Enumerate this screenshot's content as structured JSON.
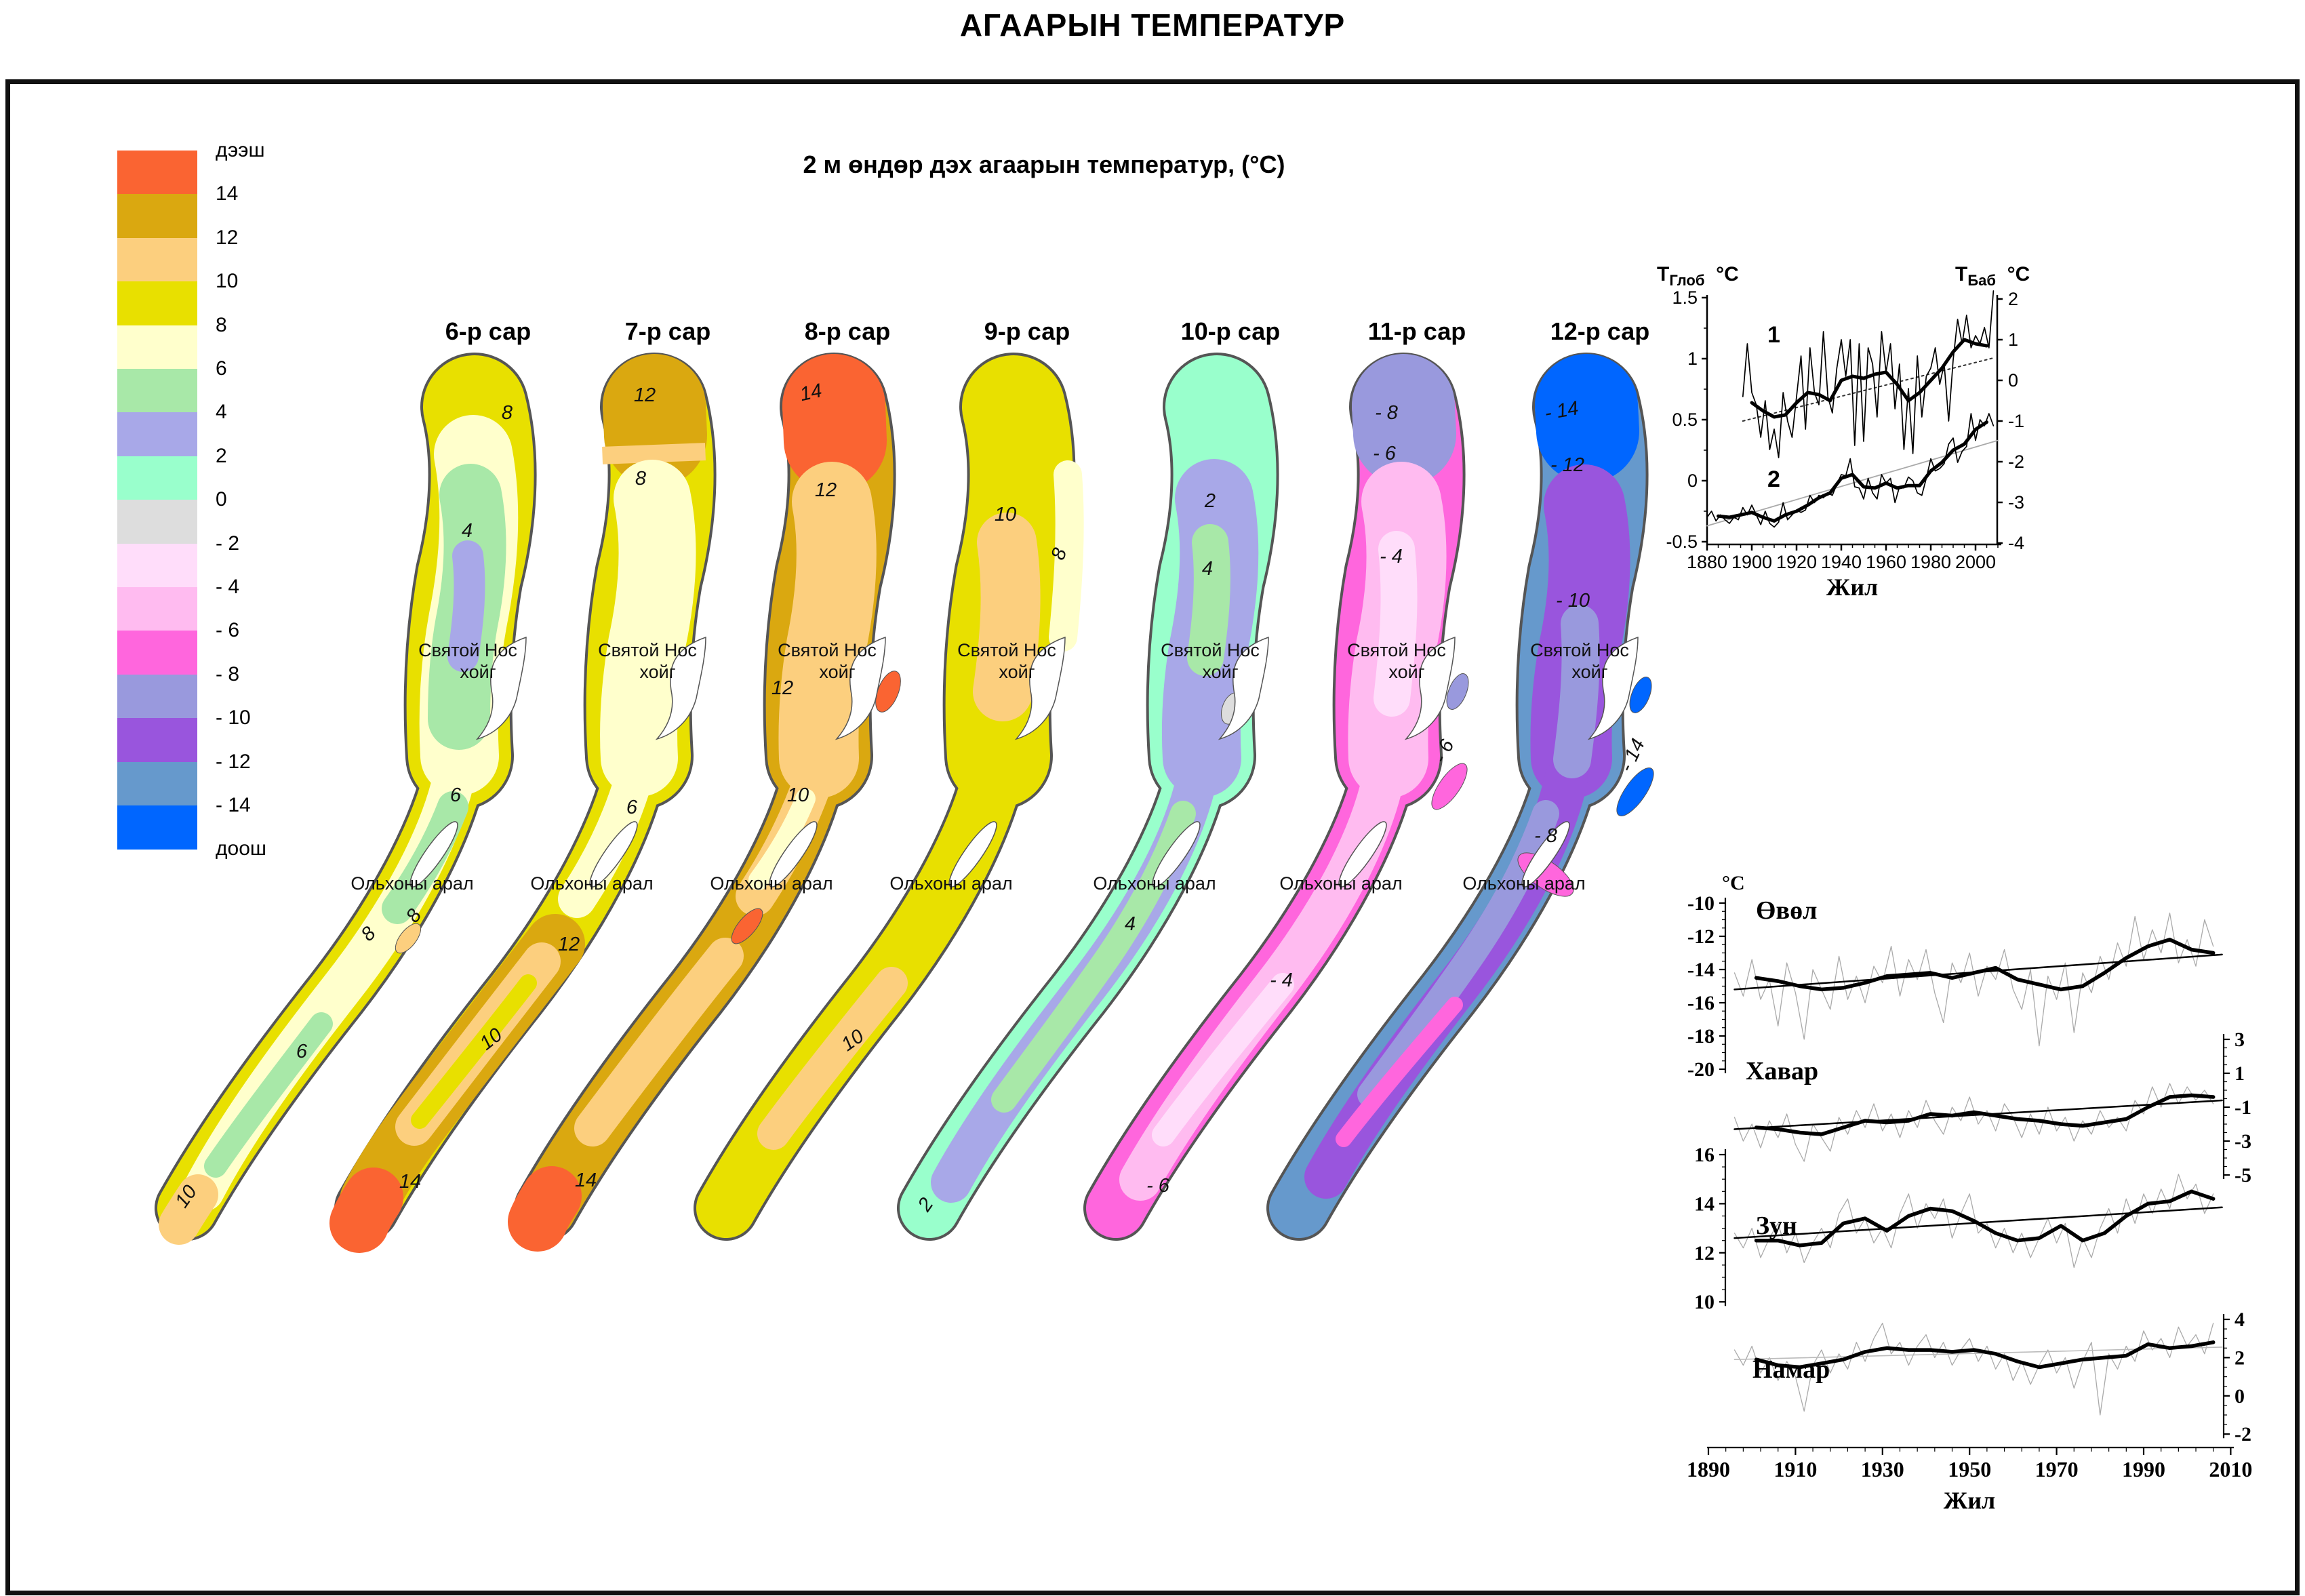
{
  "title": "АГААРЫН ТЕМПЕРАТУР",
  "subtitle": "2 м өндөр дэх агаарын температур,  (°С)",
  "legend": {
    "above": "дээш",
    "below": "доош",
    "boundary_labels": [
      "дээш",
      "14",
      "12",
      "10",
      "8",
      "6",
      "4",
      "2",
      "0",
      "- 2",
      "- 4",
      "- 6",
      "- 8",
      "- 10",
      "- 12",
      "- 14",
      "доош"
    ],
    "colors": [
      "#FA6432",
      "#DAA810",
      "#FCCF7E",
      "#E8E000",
      "#FFFFCC",
      "#A8E8A8",
      "#A8A8E8",
      "#99FFCC",
      "#DDDDDD",
      "#FFDDFA",
      "#FFBBF0",
      "#FF66DD",
      "#9999DD",
      "#9955DD",
      "#6699CC",
      "#0066FF"
    ]
  },
  "zone_colors": {
    "14+": "#FA6432",
    "12-14": "#DAA810",
    "10-12": "#FCCF7E",
    "8-10": "#E8E000",
    "6-8": "#FFFFCC",
    "4-6": "#A8E8A8",
    "2-4": "#A8A8E8",
    "0-2": "#99FFCC",
    "-2-0": "#DDDDDD",
    "-4--2": "#FFDDFA",
    "-6--4": "#FFBBF0",
    "-8--6": "#FF66DD",
    "-10--8": "#9999DD",
    "-12--10": "#9955DD",
    "-14--12": "#6699CC",
    "-14-": "#0066FF",
    "outline": "#555555"
  },
  "maps": [
    {
      "id": "6",
      "title": "6-р сар",
      "peninsula": "Святой Нос хойг",
      "island": "Ольхоны арал",
      "contours": [
        "8",
        "4",
        "6",
        "8",
        "8",
        "6",
        "10"
      ],
      "zones": [
        "8-10",
        "6-8",
        "4-6",
        "2-4",
        "10-12"
      ]
    },
    {
      "id": "7",
      "title": "7-р сар",
      "peninsula": "Святой Нос хойг",
      "island": "Ольхоны арал",
      "contours": [
        "12",
        "8",
        "6",
        "12",
        "10",
        "14"
      ],
      "zones": [
        "8-10",
        "12-14",
        "10-12",
        "6-8",
        "14+"
      ]
    },
    {
      "id": "8",
      "title": "8-р сар",
      "peninsula": "Святой Нос хойг",
      "island": "Ольхоны арал",
      "contours": [
        "14",
        "12",
        "12",
        "10",
        "14"
      ],
      "zones": [
        "12-14",
        "14+",
        "10-12",
        "6-8"
      ]
    },
    {
      "id": "9",
      "title": "9-р сар",
      "peninsula": "Святой Нос хойг",
      "island": "Ольхоны арал",
      "contours": [
        "8",
        "10",
        "10"
      ],
      "zones": [
        "8-10",
        "6-8",
        "10-12"
      ]
    },
    {
      "id": "10",
      "title": "10-р сар",
      "peninsula": "Святой Нос хойг",
      "island": "Ольхоны арал",
      "contours": [
        "2",
        "4",
        "4",
        "2"
      ],
      "zones": [
        "0-2",
        "2-4",
        "4-6",
        "-2-0"
      ]
    },
    {
      "id": "11",
      "title": "11-р сар",
      "peninsula": "Святой Нос хойг",
      "island": "Ольхоны арал",
      "contours": [
        "- 8",
        "- 6",
        "- 4",
        "- 6",
        "- 4",
        "- 6"
      ],
      "zones": [
        "-8--6",
        "-10--8",
        "-6--4",
        "-4--2"
      ]
    },
    {
      "id": "12",
      "title": "12-р сар",
      "peninsula": "Святой Нос хойг",
      "island": "Ольхоны арал",
      "contours": [
        "- 14",
        "- 12",
        "- 10",
        "- 14",
        "- 8"
      ],
      "zones": [
        "-14--12",
        "-14-",
        "-12--10",
        "-10--8",
        "-8--6"
      ]
    }
  ],
  "chart_data": [
    {
      "type": "line",
      "title": "",
      "xlabel": "Жил",
      "x_range": [
        1880,
        2010
      ],
      "x_ticks": [
        1880,
        1900,
        1920,
        1940,
        1960,
        1980,
        2000
      ],
      "left_axis": {
        "label_main": "Т",
        "label_sub": "Глоб",
        "unit": "°С",
        "ticks": [
          1.5,
          1,
          0.5,
          0,
          -0.5
        ]
      },
      "right_axis": {
        "label_main": "Т",
        "label_sub": "Баб",
        "unit": "°С",
        "ticks": [
          2,
          1,
          0,
          -1,
          -2,
          -3,
          -4
        ]
      },
      "series": [
        {
          "name": "1",
          "axis": "right",
          "annual": {
            "start": 1896,
            "step": 2,
            "values": [
              -0.4,
              0.9,
              -0.3,
              -0.6,
              -1.4,
              -0.5,
              -1.7,
              -1.2,
              -1.9,
              -0.3,
              -1.0,
              -1.4,
              -0.4,
              0.6,
              -1.2,
              0.8,
              -0.3,
              -0.6,
              1.2,
              -0.4,
              -0.8,
              0.3,
              1.0,
              0.1,
              1.0,
              -1.6,
              0.9,
              -1.5,
              0.8,
              0.4,
              -0.9,
              1.2,
              0.2,
              0.9,
              -0.7,
              0.4,
              -1.7,
              -0.2,
              -1.8,
              0.6,
              -0.9,
              0.1,
              0.3,
              0.8,
              -0.1,
              0.4,
              -1.0,
              0.5,
              1.5,
              0.9,
              1.6,
              0.8,
              1.1,
              0.9,
              1.3,
              0.8,
              2.2
            ]
          },
          "smoothed": {
            "start": 1900,
            "step": 5,
            "values": [
              -0.55,
              -0.75,
              -0.9,
              -0.85,
              -0.55,
              -0.3,
              -0.35,
              -0.5,
              0.0,
              0.1,
              0.05,
              0.15,
              0.2,
              -0.1,
              -0.5,
              -0.3,
              0.0,
              0.3,
              0.7,
              1.0,
              0.9,
              0.85
            ]
          },
          "trend": {
            "years": [
              1896,
              2008
            ],
            "values": [
              -1.0,
              0.55
            ],
            "style": "dotted"
          }
        },
        {
          "name": "2",
          "axis": "left",
          "annual": {
            "start": 1880,
            "step": 2,
            "values": [
              -0.3,
              -0.25,
              -0.33,
              -0.28,
              -0.32,
              -0.35,
              -0.3,
              -0.32,
              -0.22,
              -0.28,
              -0.2,
              -0.28,
              -0.36,
              -0.25,
              -0.35,
              -0.38,
              -0.34,
              -0.18,
              -0.32,
              -0.28,
              -0.24,
              -0.26,
              -0.24,
              -0.12,
              -0.18,
              -0.12,
              -0.14,
              -0.1,
              -0.12,
              -0.03,
              0.05,
              0.04,
              0.18,
              -0.05,
              -0.06,
              -0.15,
              0.02,
              -0.1,
              -0.15,
              0.05,
              -0.02,
              0.02,
              -0.18,
              -0.05,
              -0.06,
              0.03,
              0.0,
              -0.1,
              -0.12,
              0.02,
              0.18,
              0.08,
              0.1,
              0.14,
              0.3,
              0.35,
              0.15,
              0.24,
              0.28,
              0.55,
              0.33,
              0.5,
              0.45,
              0.55,
              0.45
            ]
          },
          "smoothed": {
            "start": 1885,
            "step": 5,
            "values": [
              -0.29,
              -0.3,
              -0.28,
              -0.26,
              -0.3,
              -0.33,
              -0.28,
              -0.25,
              -0.2,
              -0.14,
              -0.1,
              0.02,
              0.05,
              -0.05,
              -0.06,
              -0.02,
              -0.06,
              -0.04,
              -0.04,
              0.08,
              0.15,
              0.25,
              0.3,
              0.42,
              0.48
            ]
          },
          "trend": {
            "years": [
              1880,
              2010
            ],
            "values": [
              -0.37,
              0.33
            ],
            "style": "gray"
          }
        }
      ]
    },
    {
      "type": "line",
      "xlabel": "Жил",
      "x_range": [
        1890,
        2010
      ],
      "x_ticks": [
        1890,
        1910,
        1930,
        1950,
        1970,
        1990,
        2010
      ],
      "panels": [
        {
          "name": "Өвөл",
          "unit": "°С",
          "axis_side": "left",
          "ticks": [
            -10,
            -12,
            -14,
            -16,
            -18,
            -20
          ],
          "annual": {
            "start": 1896,
            "step": 2,
            "values": [
              -14.2,
              -15.6,
              -13.4,
              -15.8,
              -14.6,
              -17.4,
              -13.6,
              -15.4,
              -18.2,
              -14.0,
              -15.2,
              -16.4,
              -13.2,
              -15.8,
              -14.4,
              -16.0,
              -13.8,
              -14.8,
              -12.6,
              -15.6,
              -13.4,
              -14.6,
              -12.8,
              -15.4,
              -17.2,
              -13.6,
              -14.8,
              -13.0,
              -15.6,
              -13.8,
              -14.6,
              -12.8,
              -15.2,
              -16.4,
              -14.0,
              -18.6,
              -14.4,
              -15.8,
              -13.6,
              -17.8,
              -14.2,
              -15.4,
              -13.2,
              -14.6,
              -12.4,
              -13.8,
              -10.8,
              -13.4,
              -11.6,
              -13.0,
              -10.6,
              -13.6,
              -12.2,
              -13.8,
              -11.0,
              -12.6
            ]
          },
          "smoothed": {
            "start": 1901,
            "step": 5,
            "values": [
              -14.5,
              -14.7,
              -15.0,
              -15.2,
              -15.1,
              -14.8,
              -14.4,
              -14.3,
              -14.2,
              -14.5,
              -14.2,
              -13.9,
              -14.6,
              -14.9,
              -15.2,
              -15.0,
              -14.2,
              -13.3,
              -12.6,
              -12.2,
              -12.8,
              -13.0
            ]
          },
          "trend": {
            "years": [
              1896,
              2008
            ],
            "values": [
              -15.2,
              -13.1
            ]
          }
        },
        {
          "name": "Хавар",
          "unit": "°С",
          "axis_side": "right",
          "ticks": [
            3,
            1,
            -1,
            -3,
            -5
          ],
          "annual": {
            "start": 1896,
            "step": 2,
            "values": [
              -1.6,
              -3.0,
              -2.0,
              -3.4,
              -1.8,
              -2.8,
              -1.4,
              -3.2,
              -4.2,
              -2.0,
              -2.8,
              -3.6,
              -1.6,
              -2.6,
              -1.2,
              -2.2,
              -0.8,
              -2.4,
              -1.4,
              -2.8,
              -1.2,
              -2.2,
              -0.6,
              -1.8,
              -2.6,
              -1.0,
              -1.8,
              -0.4,
              -2.0,
              -1.2,
              -2.4,
              -0.8,
              -1.6,
              -2.8,
              -1.4,
              -2.6,
              -1.0,
              -2.4,
              -1.6,
              -3.0,
              -1.8,
              -2.6,
              -1.2,
              -2.2,
              -1.6,
              -2.4,
              -0.6,
              -1.4,
              0.2,
              -1.0,
              0.4,
              -0.8,
              0.2,
              -0.6,
              0.0,
              -0.8
            ]
          },
          "smoothed": {
            "start": 1901,
            "step": 5,
            "values": [
              -2.2,
              -2.3,
              -2.5,
              -2.6,
              -2.2,
              -1.8,
              -1.9,
              -1.8,
              -1.4,
              -1.5,
              -1.3,
              -1.5,
              -1.7,
              -1.8,
              -2.0,
              -2.1,
              -1.9,
              -1.7,
              -1.0,
              -0.4,
              -0.3,
              -0.4
            ]
          },
          "trend": {
            "years": [
              1896,
              2008
            ],
            "values": [
              -2.3,
              -0.6
            ]
          }
        },
        {
          "name": "Зун",
          "unit": "°С",
          "axis_side": "left",
          "ticks": [
            16,
            14,
            12,
            10
          ],
          "annual": {
            "start": 1896,
            "step": 2,
            "values": [
              12.8,
              12.2,
              13.0,
              11.8,
              12.6,
              13.2,
              12.0,
              12.8,
              11.6,
              12.4,
              13.0,
              12.2,
              13.6,
              14.2,
              12.8,
              13.4,
              12.4,
              13.0,
              12.2,
              13.6,
              14.4,
              13.0,
              14.0,
              13.4,
              14.2,
              12.6,
              13.6,
              14.4,
              12.8,
              13.2,
              12.2,
              13.0,
              12.0,
              12.8,
              11.8,
              12.6,
              13.4,
              12.4,
              13.2,
              11.4,
              12.6,
              11.8,
              13.0,
              13.8,
              12.8,
              14.2,
              13.2,
              14.4,
              13.6,
              14.6,
              13.8,
              15.2,
              14.2,
              14.8,
              13.6,
              14.4
            ]
          },
          "smoothed": {
            "start": 1901,
            "step": 5,
            "values": [
              12.5,
              12.5,
              12.3,
              12.4,
              13.2,
              13.4,
              12.9,
              13.5,
              13.8,
              13.7,
              13.3,
              12.8,
              12.5,
              12.6,
              13.1,
              12.5,
              12.8,
              13.5,
              14.0,
              14.1,
              14.5,
              14.2
            ]
          },
          "trend": {
            "years": [
              1896,
              2008
            ],
            "values": [
              12.6,
              13.85
            ]
          }
        },
        {
          "name": "Намар",
          "unit": "°С",
          "axis_side": "right",
          "ticks": [
            4,
            2,
            0,
            -2
          ],
          "annual": {
            "start": 1896,
            "step": 2,
            "values": [
              2.4,
              1.6,
              2.6,
              1.2,
              2.0,
              0.8,
              1.8,
              1.0,
              -0.8,
              1.6,
              2.4,
              1.2,
              2.2,
              1.4,
              2.8,
              1.8,
              3.0,
              3.8,
              2.2,
              2.8,
              1.6,
              2.6,
              3.2,
              2.0,
              2.8,
              1.6,
              2.4,
              3.0,
              1.8,
              2.6,
              1.4,
              2.2,
              0.8,
              1.8,
              0.6,
              1.6,
              2.4,
              1.2,
              2.0,
              0.4,
              1.8,
              2.8,
              -1.0,
              2.2,
              1.4,
              2.6,
              1.8,
              3.4,
              2.4,
              3.0,
              2.0,
              3.6,
              2.6,
              3.2,
              2.2,
              3.8
            ]
          },
          "smoothed": {
            "start": 1901,
            "step": 5,
            "values": [
              1.9,
              1.6,
              1.5,
              1.7,
              1.9,
              2.3,
              2.5,
              2.4,
              2.4,
              2.3,
              2.4,
              2.2,
              1.8,
              1.5,
              1.7,
              1.9,
              2.0,
              2.1,
              2.7,
              2.5,
              2.6,
              2.8
            ]
          },
          "trend": {
            "years": [
              1896,
              2008
            ],
            "values": [
              1.9,
              2.55
            ],
            "style": "gray"
          }
        }
      ]
    }
  ]
}
